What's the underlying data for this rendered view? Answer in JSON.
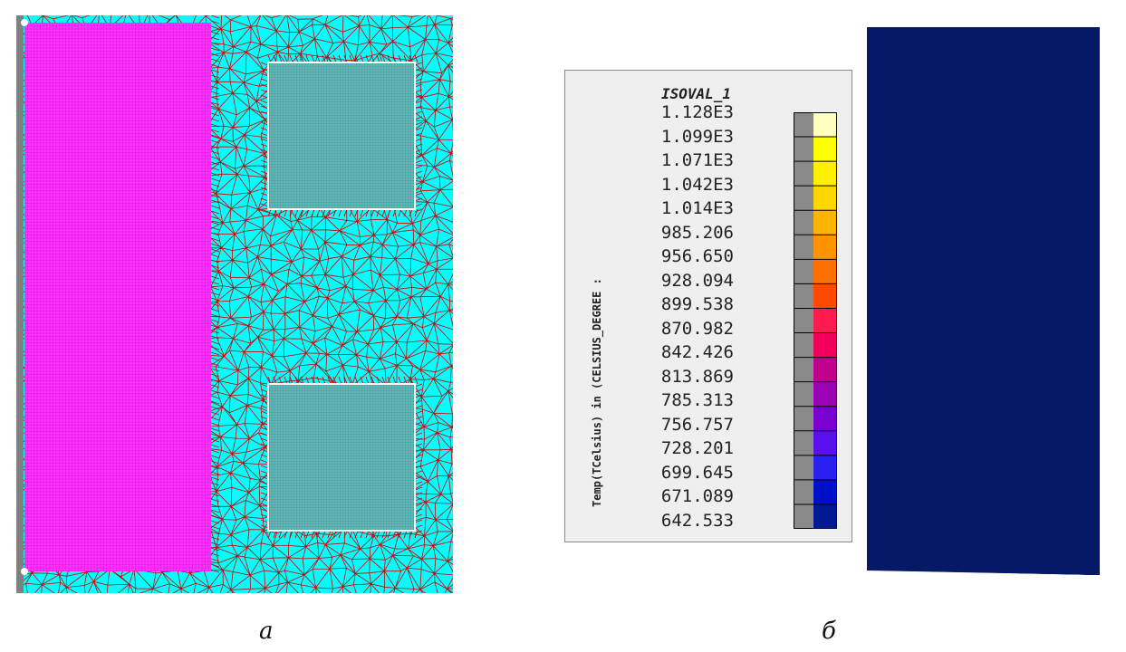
{
  "panel_a": {
    "caption": "а",
    "colors": {
      "background": "#00ffff",
      "mesh_lines": "#d00000",
      "left_block": "#ff33ff",
      "squares": "#44a3a3",
      "side_strip": "#808080"
    }
  },
  "panel_b": {
    "caption": "б",
    "legend": {
      "title": "ISOVAL_1",
      "axis_label": "Temp(TCelsius) in (CELSIUS_DEGREE :",
      "values": [
        "1.128E3",
        "1.099E3",
        "1.071E3",
        "1.042E3",
        "1.014E3",
        "985.206",
        "956.650",
        "928.094",
        "899.538",
        "870.982",
        "842.426",
        "813.869",
        "785.313",
        "756.757",
        "728.201",
        "699.645",
        "671.089",
        "642.533"
      ],
      "colors": [
        "#ffffc0",
        "#ffff00",
        "#fff000",
        "#ffd700",
        "#ffb400",
        "#ff9400",
        "#ff7000",
        "#ff4a00",
        "#ff1a50",
        "#f0005a",
        "#c0008c",
        "#9a00b4",
        "#7a00d0",
        "#5a10ee",
        "#2a20f0",
        "#0010c8",
        "#001890"
      ]
    },
    "field_colors": [
      "#061966",
      "#06187a",
      "#0010a8",
      "#0820d8",
      "#2c20f0",
      "#5a18ee",
      "#8010d8",
      "#a800b8",
      "#cc0090",
      "#ee0060",
      "#ff2040",
      "#ff5010",
      "#ff8000",
      "#ffae00",
      "#ffd400",
      "#fff000",
      "#ffff3a",
      "#ffffa8",
      "#ffffd8"
    ]
  }
}
